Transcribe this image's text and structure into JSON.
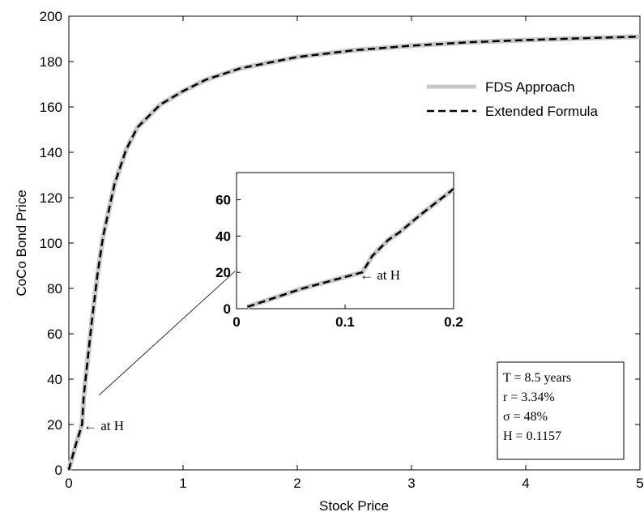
{
  "chart_data": {
    "type": "line",
    "xlabel": "Stock Price",
    "ylabel": "CoCo Bond Price",
    "xlim": [
      0,
      5
    ],
    "ylim": [
      0,
      200
    ],
    "xticks": [
      0,
      1,
      2,
      3,
      4,
      5
    ],
    "yticks": [
      0,
      20,
      40,
      60,
      80,
      100,
      120,
      140,
      160,
      180,
      200
    ],
    "grid": false,
    "legend_position": "top-right",
    "series": [
      {
        "name": "FDS Approach",
        "style": "solid",
        "color": "#c8c8c8",
        "x": [
          0.0,
          0.01,
          0.06,
          0.1157,
          0.13,
          0.15,
          0.2,
          0.25,
          0.3,
          0.4,
          0.5,
          0.6,
          0.8,
          1.0,
          1.2,
          1.5,
          2.0,
          2.5,
          3.0,
          3.5,
          4.0,
          4.5,
          5.0
        ],
        "y": [
          0,
          2,
          11,
          20,
          32,
          42,
          65,
          86,
          103,
          126,
          141,
          151,
          161,
          167,
          172,
          177,
          182,
          185,
          187,
          188.5,
          189.5,
          190.3,
          191
        ]
      },
      {
        "name": "Extended Formula",
        "style": "dashed",
        "color": "#000000",
        "x": [
          0.0,
          0.01,
          0.06,
          0.1157,
          0.13,
          0.15,
          0.2,
          0.25,
          0.3,
          0.4,
          0.5,
          0.6,
          0.8,
          1.0,
          1.2,
          1.5,
          2.0,
          2.5,
          3.0,
          3.5,
          4.0,
          4.5,
          5.0
        ],
        "y": [
          0,
          2,
          11,
          20,
          32,
          42,
          65,
          86,
          103,
          126,
          141,
          151,
          161,
          167,
          172,
          177,
          182,
          185,
          187,
          188.5,
          189.5,
          190.3,
          191
        ]
      }
    ],
    "inset": {
      "xlim": [
        0,
        0.2
      ],
      "ylim": [
        0,
        75
      ],
      "xticks": [
        0,
        0.1,
        0.2
      ],
      "xtick_labels": [
        "0",
        "0.1",
        "0.2"
      ],
      "yticks": [
        0,
        20,
        40,
        60
      ],
      "x": [
        0.01,
        0.06,
        0.1157,
        0.12,
        0.125,
        0.13,
        0.14,
        0.15,
        0.17,
        0.2
      ],
      "y": [
        1,
        11,
        20,
        24,
        29,
        32,
        38,
        42,
        52,
        66
      ]
    },
    "annotations": [
      {
        "text": "← at H",
        "target": "main",
        "x": 0.1157,
        "y": 20
      },
      {
        "text": "← at H",
        "target": "inset",
        "x": 0.1157,
        "y": 20
      }
    ],
    "parameters_box": {
      "lines": [
        "T = 8.5 years",
        "r = 3.34%",
        "σ = 48%",
        "H = 0.1157"
      ]
    }
  }
}
